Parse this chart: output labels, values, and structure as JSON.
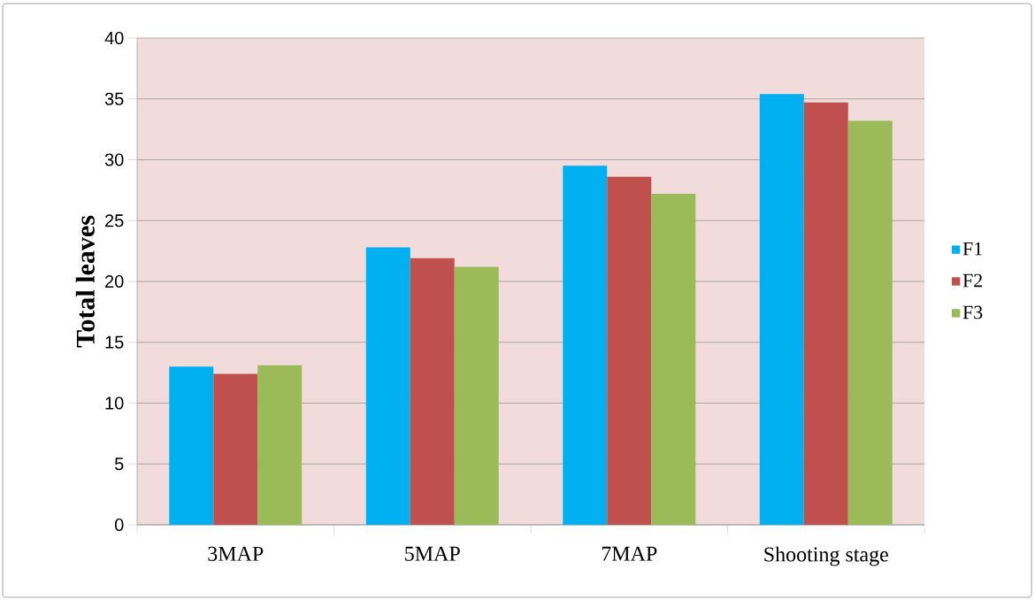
{
  "chart_data": {
    "type": "bar",
    "ylabel": "Total leaves",
    "categories": [
      "3MAP",
      "5MAP",
      "7MAP",
      "Shooting stage"
    ],
    "series": [
      {
        "name": "F1",
        "color": "#00b0f0",
        "values": [
          13.0,
          22.8,
          29.5,
          35.4
        ]
      },
      {
        "name": "F2",
        "color": "#c0504d",
        "values": [
          12.4,
          21.9,
          28.6,
          34.7
        ]
      },
      {
        "name": "F3",
        "color": "#9bbb59",
        "values": [
          13.1,
          21.2,
          27.2,
          33.2
        ]
      }
    ],
    "ylim": [
      0,
      40
    ],
    "yticks": [
      0,
      5,
      10,
      15,
      20,
      25,
      30,
      35,
      40
    ],
    "grid": "y",
    "legend": "right"
  }
}
